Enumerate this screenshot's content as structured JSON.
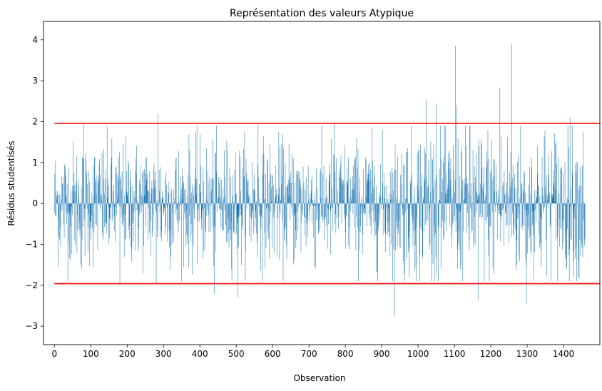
{
  "chart_data": {
    "type": "bar",
    "title": "Représentation des valeurs Atypique",
    "xlabel": "Observation",
    "ylabel": "Résidus studentisés",
    "xlim": [
      -30,
      1500
    ],
    "ylim": [
      -3.45,
      4.45
    ],
    "x_ticks": [
      0,
      100,
      200,
      300,
      400,
      500,
      600,
      700,
      800,
      900,
      1000,
      1100,
      1200,
      1300,
      1400
    ],
    "y_ticks": [
      -3,
      -2,
      -1,
      0,
      1,
      2,
      3,
      4
    ],
    "bar_color": "#1f77b4",
    "threshold_color": "#ff0000",
    "thresholds": [
      1.96,
      -1.96
    ],
    "threshold_x_range": [
      0,
      1500
    ],
    "grid": false,
    "legend": "none",
    "observation_count": 1460,
    "notable_points": [
      {
        "x": 75,
        "y": -1.6
      },
      {
        "x": 80,
        "y": 1.97
      },
      {
        "x": 180,
        "y": -1.95
      },
      {
        "x": 280,
        "y": -1.95
      },
      {
        "x": 285,
        "y": 2.2
      },
      {
        "x": 440,
        "y": -2.2
      },
      {
        "x": 505,
        "y": -2.3
      },
      {
        "x": 560,
        "y": 1.95
      },
      {
        "x": 770,
        "y": 1.95
      },
      {
        "x": 935,
        "y": -2.75
      },
      {
        "x": 1022,
        "y": 2.55
      },
      {
        "x": 1050,
        "y": 2.45
      },
      {
        "x": 1103,
        "y": 3.85
      },
      {
        "x": 1107,
        "y": 2.4
      },
      {
        "x": 1165,
        "y": -2.35
      },
      {
        "x": 1225,
        "y": 2.83
      },
      {
        "x": 1258,
        "y": 3.9
      },
      {
        "x": 1298,
        "y": -2.45
      },
      {
        "x": 1418,
        "y": 2.1
      }
    ]
  }
}
